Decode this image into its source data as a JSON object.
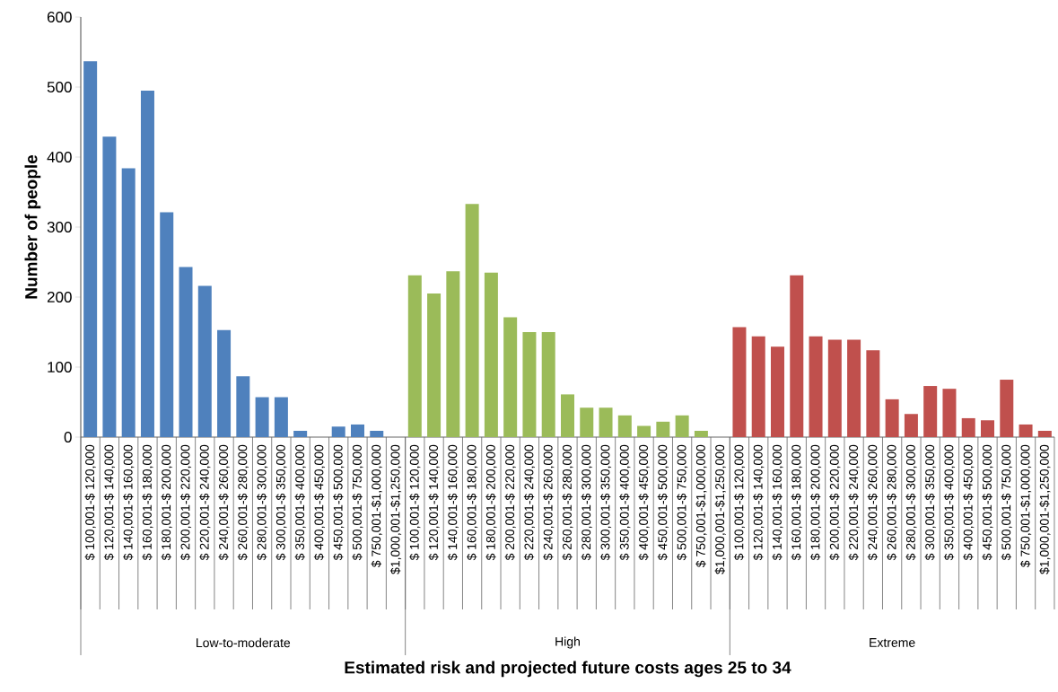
{
  "chart_data": {
    "type": "bar",
    "ylabel": "Number of people",
    "categories": [
      "$ 100,001-$ 120,000",
      "$ 120,001-$ 140,000",
      "$ 140,001-$ 160,000",
      "$ 160,001-$ 180,000",
      "$ 180,001-$ 200,000",
      "$ 200,001-$ 220,000",
      "$ 220,001-$ 240,000",
      "$ 240,001-$ 260,000",
      "$ 260,001-$ 280,000",
      "$ 280,001-$ 300,000",
      "$ 300,001-$ 350,000",
      "$ 350,001-$ 400,000",
      "$ 400,001-$ 450,000",
      "$ 450,001-$ 500,000",
      "$ 500,001-$ 750,000",
      "$ 750,001-$1,000,000",
      "$1,000,001-$1,250,000",
      "$ 100,001-$ 120,000",
      "$ 120,001-$ 140,000",
      "$ 140,001-$ 160,000",
      "$ 160,001-$ 180,000",
      "$ 180,001-$ 200,000",
      "$ 200,001-$ 220,000",
      "$ 220,001-$ 240,000",
      "$ 240,001-$ 260,000",
      "$ 260,001-$ 280,000",
      "$ 280,001-$ 300,000",
      "$ 300,001-$ 350,000",
      "$ 350,001-$ 400,000",
      "$ 400,001-$ 450,000",
      "$ 450,001-$ 500,000",
      "$ 500,001-$ 750,000",
      "$ 750,001-$1,000,000",
      "$1,000,001-$1,250,000",
      "$ 100,001-$ 120,000",
      "$ 120,001-$ 140,000",
      "$ 140,001-$ 160,000",
      "$ 160,001-$ 180,000",
      "$ 180,001-$ 200,000",
      "$ 200,001-$ 220,000",
      "$ 220,001-$ 240,000",
      "$ 240,001-$ 260,000",
      "$ 260,001-$ 280,000",
      "$ 280,001-$ 300,000",
      "$ 300,001-$ 350,000",
      "$ 350,001-$ 400,000",
      "$ 400,001-$ 450,000",
      "$ 450,001-$ 500,000",
      "$ 500,001-$ 750,000",
      "$ 750,001-$1,000,000",
      "$1,000,001-$1,250,000"
    ],
    "series": [
      {
        "color": "#4f81bd",
        "values": [
          537,
          429,
          384,
          495,
          321,
          243,
          216,
          153,
          87,
          57,
          57,
          9,
          0,
          15,
          18,
          9,
          0,
          null,
          null,
          null,
          null,
          null,
          null,
          null,
          null,
          null,
          null,
          null,
          null,
          null,
          null,
          null,
          null,
          null,
          null,
          null,
          null,
          null,
          null,
          null,
          null,
          null,
          null,
          null,
          null,
          null,
          null,
          null,
          null,
          null,
          null
        ]
      },
      {
        "color": "#9bbb59",
        "values": [
          null,
          null,
          null,
          null,
          null,
          null,
          null,
          null,
          null,
          null,
          null,
          null,
          null,
          null,
          null,
          null,
          null,
          231,
          205,
          237,
          333,
          235,
          171,
          150,
          150,
          61,
          42,
          42,
          31,
          16,
          22,
          31,
          9,
          0,
          null,
          null,
          null,
          null,
          null,
          null,
          null,
          null,
          null,
          null,
          null,
          null,
          null,
          null,
          null,
          null,
          null
        ]
      },
      {
        "color": "#c0504d",
        "values": [
          null,
          null,
          null,
          null,
          null,
          null,
          null,
          null,
          null,
          null,
          null,
          null,
          null,
          null,
          null,
          null,
          null,
          null,
          null,
          null,
          null,
          null,
          null,
          null,
          null,
          null,
          null,
          null,
          null,
          null,
          null,
          null,
          null,
          null,
          157,
          144,
          129,
          231,
          144,
          139,
          139,
          124,
          54,
          33,
          73,
          69,
          27,
          24,
          82,
          18,
          9
        ]
      }
    ],
    "annotations": [
      "Low-to-moderate",
      "High",
      "Extreme",
      "Estimated risk and projected future costs ages 25 to 34"
    ],
    "ylim": [
      0,
      600
    ],
    "yticks": [
      0,
      100,
      200,
      300,
      400,
      500,
      600
    ],
    "grid": false,
    "legend": false
  }
}
